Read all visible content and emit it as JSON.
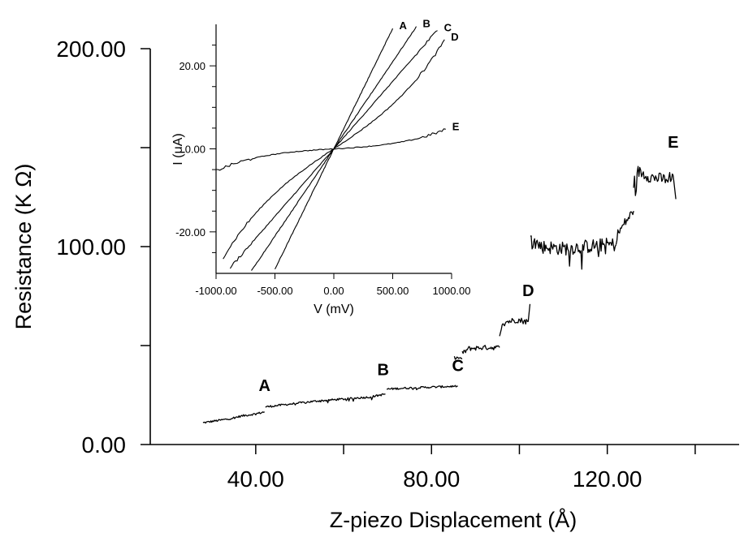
{
  "chart_data": [
    {
      "id": "main",
      "type": "line",
      "xlabel": "Z-piezo Displacement (Å)",
      "ylabel": "Resistance (K Ω)",
      "xlim": [
        16,
        150
      ],
      "ylim": [
        0,
        200
      ],
      "x_ticks": [
        40,
        80,
        120
      ],
      "x_tick_labels": [
        "40.00",
        "80.00",
        "120.00"
      ],
      "x_minor_ticks": [
        60,
        100,
        140
      ],
      "y_ticks": [
        0,
        100,
        200
      ],
      "y_tick_labels": [
        "0.00",
        "100.00",
        "200.00"
      ],
      "y_minor_ticks": [
        50,
        150
      ],
      "grid": false,
      "series": [
        {
          "segments": [
            {
              "x": [
                28,
                31,
                34,
                37,
                40,
                42
              ],
              "y": [
                11,
                12,
                13,
                14.5,
                15.5,
                16.5
              ],
              "noise": 0.5
            },
            {
              "x": [
                42.2,
                48,
                54,
                60,
                66,
                69.5
              ],
              "y": [
                19,
                20.5,
                22,
                23,
                24,
                25.5
              ],
              "noise": 0.5
            },
            {
              "x": [
                69.8,
                74,
                80,
                86
              ],
              "y": [
                28,
                28.5,
                29,
                29.5
              ],
              "noise": 0.5
            },
            {
              "x": [
                85.2,
                87
              ],
              "y": [
                44,
                43.5
              ],
              "noise": 0.6
            },
            {
              "x": [
                87,
                88.5,
                92,
                95.5
              ],
              "y": [
                46,
                48.5,
                49,
                49
              ],
              "noise": 1.2
            },
            {
              "x": [
                95.5,
                97,
                99.5,
                102
              ],
              "y": [
                58,
                62,
                63,
                62
              ],
              "noise": 1.5
            },
            {
              "x": [
                102,
                102.4
              ],
              "y": [
                62,
                71
              ],
              "noise": 0
            },
            {
              "x": [
                102.5,
                105,
                110,
                115,
                120,
                122
              ],
              "y": [
                104,
                100,
                99,
                100,
                101,
                101
              ],
              "noise": 3.5
            },
            {
              "x": [
                122,
                124,
                126
              ],
              "y": [
                105,
                112,
                118
              ],
              "noise": 2.5
            },
            {
              "x": [
                126,
                127,
                130,
                133,
                135
              ],
              "y": [
                132,
                138,
                135,
                134,
                136
              ],
              "noise": 3
            },
            {
              "x": [
                135,
                135.6
              ],
              "y": [
                136,
                124
              ],
              "noise": 0
            }
          ]
        }
      ],
      "annotations": [
        {
          "text": "A",
          "x": 42,
          "y": 27
        },
        {
          "text": "B",
          "x": 69,
          "y": 35
        },
        {
          "text": "C",
          "x": 86,
          "y": 37
        },
        {
          "text": "D",
          "x": 102,
          "y": 75
        },
        {
          "text": "E",
          "x": 135,
          "y": 150
        }
      ]
    },
    {
      "id": "inset",
      "type": "line",
      "xlabel": "V (mV)",
      "ylabel": "I (μA)",
      "xlim": [
        -1000,
        1000
      ],
      "ylim": [
        -30,
        30
      ],
      "x_ticks": [
        -1000,
        -500,
        0,
        500,
        1000
      ],
      "x_tick_labels": [
        "-1000.00",
        "-500.00",
        "0.00",
        "500.00",
        "1000.00"
      ],
      "y_ticks": [
        -20,
        0,
        20
      ],
      "y_tick_labels": [
        "-20.00",
        "0.00",
        "20.00"
      ],
      "y_minor_ticks": [
        -25,
        -15,
        -10,
        -5,
        5,
        10,
        15,
        25
      ],
      "grid": false,
      "series": [
        {
          "name": "A",
          "g": 0.058,
          "c": 0.0,
          "x_from": -500,
          "x_to": 500
        },
        {
          "name": "B",
          "g": 0.042,
          "c": 0.0,
          "x_from": -700,
          "x_to": 700
        },
        {
          "name": "C",
          "g": 0.0325,
          "c": 0.0,
          "x_from": -880,
          "x_to": 880
        },
        {
          "name": "D",
          "g": 0.019,
          "c": 1e-08,
          "x_from": -940,
          "x_to": 940
        },
        {
          "name": "E",
          "g": 0.0017,
          "c": 3.6e-09,
          "x_from": -1000,
          "x_to": 950
        }
      ]
    }
  ]
}
